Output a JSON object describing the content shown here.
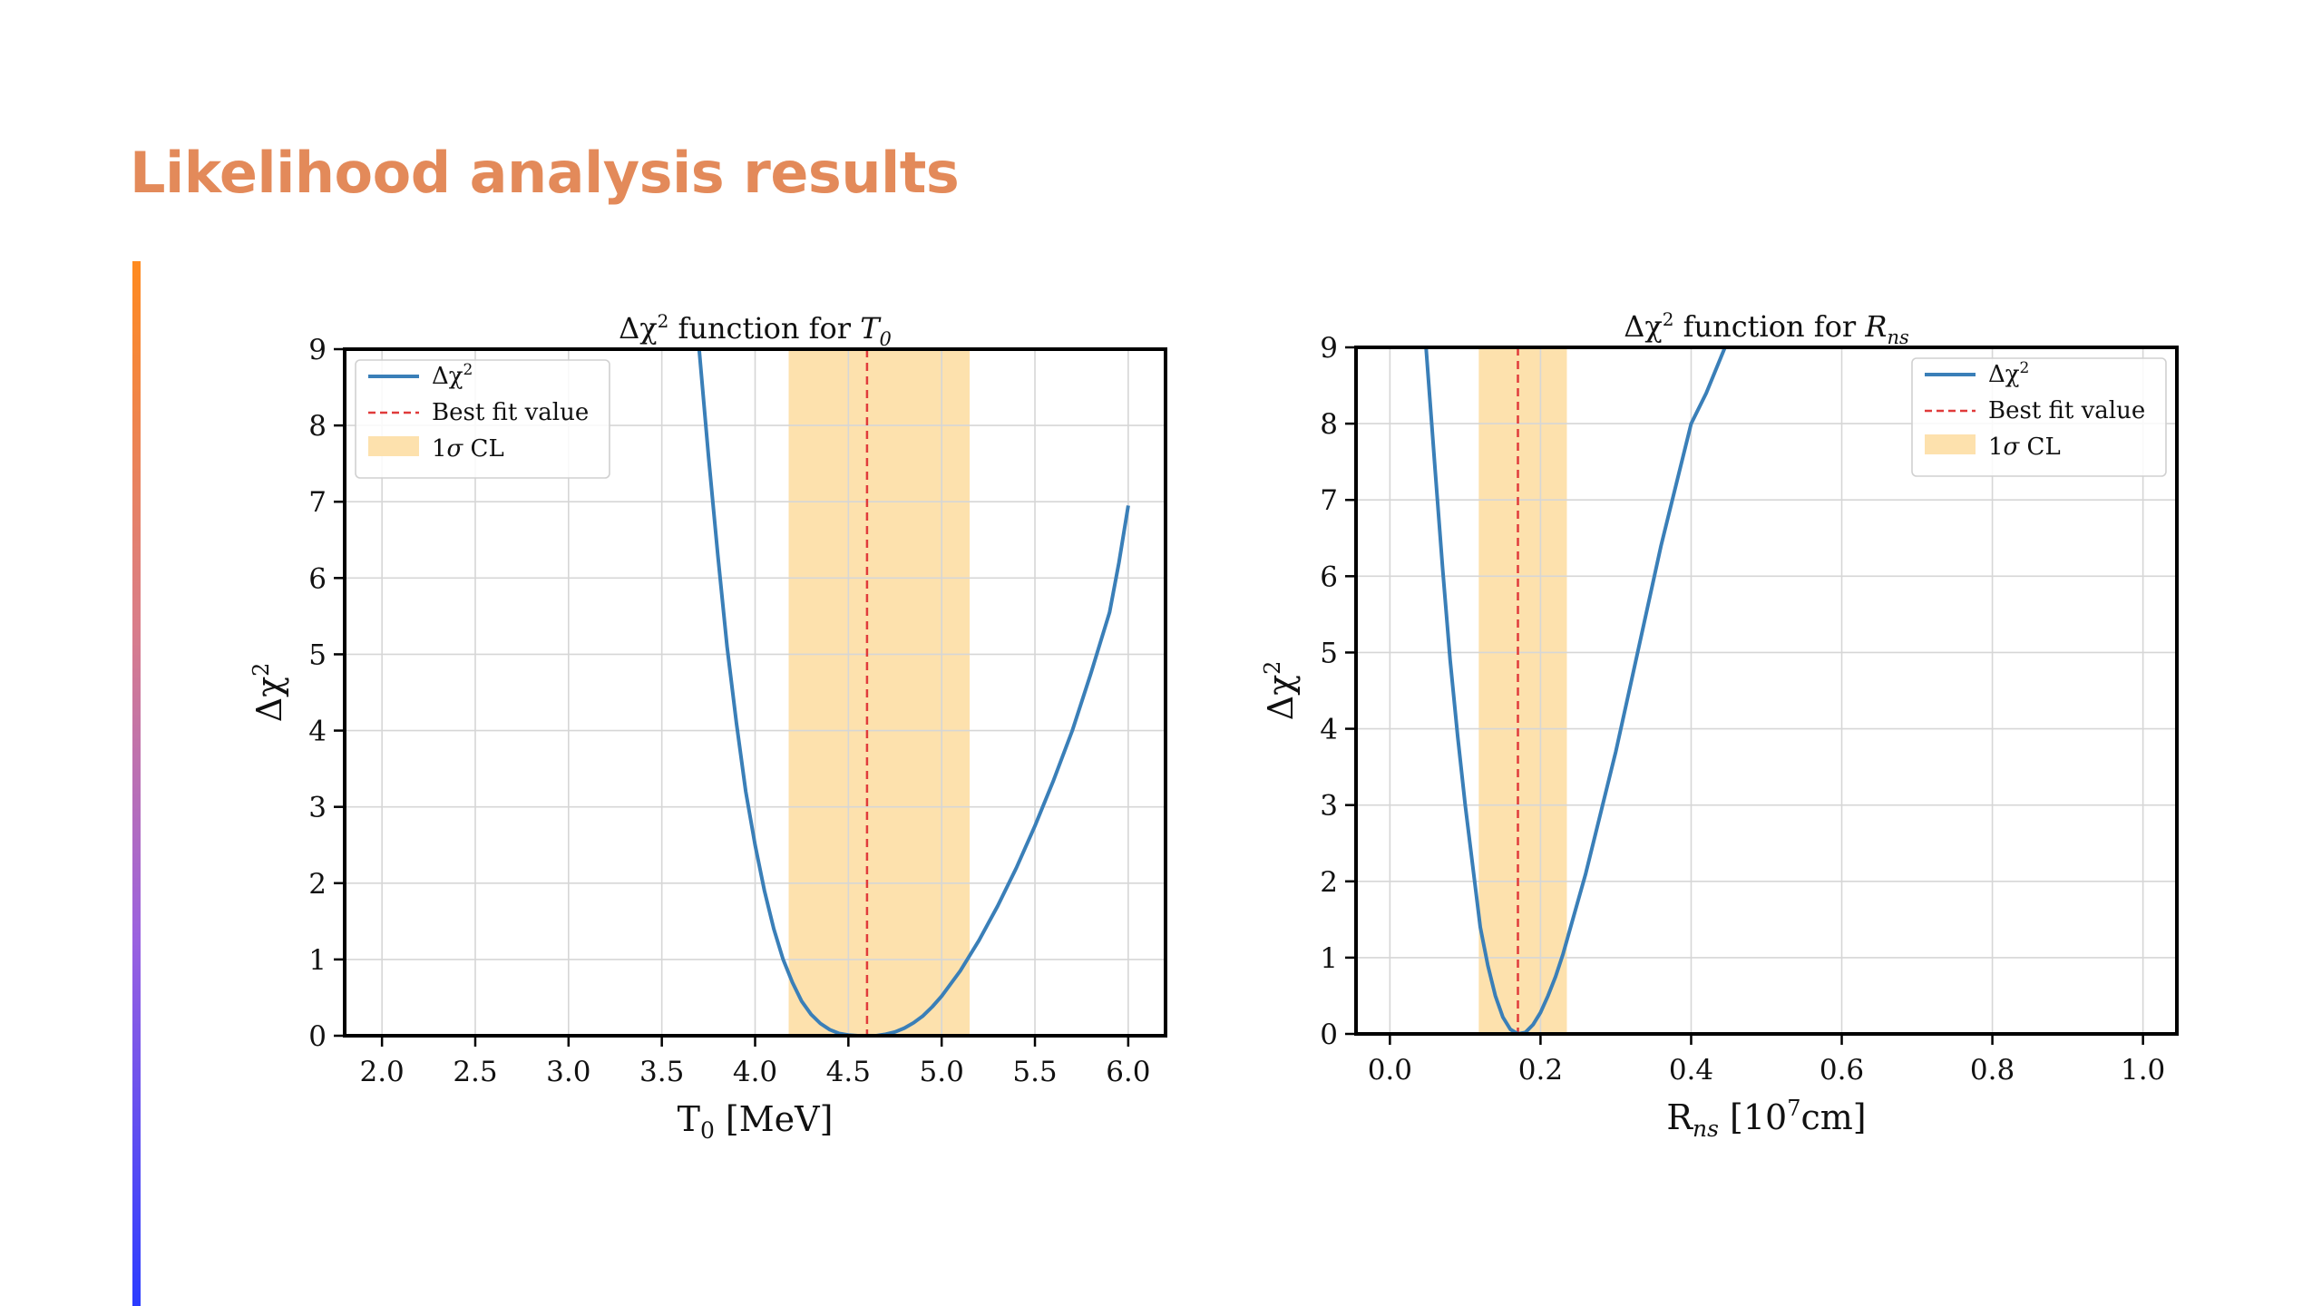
{
  "slide": {
    "title": "Likelihood analysis results"
  },
  "colors": {
    "title": "#e38a5a",
    "curve": "#3a7fb8",
    "best_fit": "#e03b3b",
    "band": "#fde1ad"
  },
  "chart_data": [
    {
      "type": "line",
      "title_parts": [
        "Δχ",
        "2",
        " function for ",
        "T",
        "0"
      ],
      "xlabel_parts": [
        "T",
        "0",
        " [MeV]"
      ],
      "ylabel_parts": [
        "Δχ",
        "2"
      ],
      "xlim": [
        1.8,
        6.2
      ],
      "ylim": [
        0,
        9
      ],
      "xticks": [
        2.0,
        2.5,
        3.0,
        3.5,
        4.0,
        4.5,
        5.0,
        5.5,
        6.0
      ],
      "xtick_labels": [
        "2.0",
        "2.5",
        "3.0",
        "3.5",
        "4.0",
        "4.5",
        "5.0",
        "5.5",
        "6.0"
      ],
      "yticks": [
        0,
        1,
        2,
        3,
        4,
        5,
        6,
        7,
        8,
        9
      ],
      "ytick_labels": [
        "0",
        "1",
        "2",
        "3",
        "4",
        "5",
        "6",
        "7",
        "8",
        "9"
      ],
      "grid": true,
      "legend_position": "upper-left",
      "series": [
        {
          "name_parts": [
            "Δχ",
            "2"
          ],
          "x": [
            3.7,
            3.75,
            3.8,
            3.85,
            3.9,
            3.95,
            4.0,
            4.05,
            4.1,
            4.15,
            4.2,
            4.25,
            4.3,
            4.35,
            4.4,
            4.45,
            4.5,
            4.55,
            4.6,
            4.65,
            4.7,
            4.75,
            4.8,
            4.85,
            4.9,
            4.95,
            5.0,
            5.1,
            5.2,
            5.3,
            5.4,
            5.5,
            5.6,
            5.7,
            5.8,
            5.85,
            5.9,
            5.95,
            6.0
          ],
          "y": [
            9.0,
            7.6,
            6.3,
            5.1,
            4.1,
            3.2,
            2.5,
            1.9,
            1.4,
            1.0,
            0.7,
            0.45,
            0.28,
            0.16,
            0.08,
            0.03,
            0.01,
            0.0,
            0.0,
            0.0,
            0.02,
            0.05,
            0.1,
            0.17,
            0.26,
            0.38,
            0.52,
            0.85,
            1.25,
            1.7,
            2.2,
            2.75,
            3.35,
            4.0,
            4.75,
            5.15,
            5.55,
            6.2,
            6.95
          ]
        }
      ],
      "best_fit": {
        "label": "Best fit value",
        "x": 4.6
      },
      "band": {
        "label_parts": [
          "1",
          "σ",
          " CL"
        ],
        "x": [
          4.18,
          5.15
        ]
      }
    },
    {
      "type": "line",
      "title_parts": [
        "Δχ",
        "2",
        " function for ",
        "R",
        "ns"
      ],
      "xlabel_parts": [
        "R",
        "ns",
        " [10",
        "7",
        "cm]"
      ],
      "ylabel_parts": [
        "Δχ",
        "2"
      ],
      "xlim": [
        -0.045,
        1.045
      ],
      "ylim": [
        0,
        9
      ],
      "xticks": [
        0.0,
        0.2,
        0.4,
        0.6,
        0.8,
        1.0
      ],
      "xtick_labels": [
        "0.0",
        "0.2",
        "0.4",
        "0.6",
        "0.8",
        "1.0"
      ],
      "yticks": [
        0,
        1,
        2,
        3,
        4,
        5,
        6,
        7,
        8,
        9
      ],
      "ytick_labels": [
        "0",
        "1",
        "2",
        "3",
        "4",
        "5",
        "6",
        "7",
        "8",
        "9"
      ],
      "grid": true,
      "legend_position": "upper-right",
      "series": [
        {
          "name_parts": [
            "Δχ",
            "2"
          ],
          "x": [
            0.048,
            0.06,
            0.07,
            0.08,
            0.09,
            0.1,
            0.11,
            0.12,
            0.13,
            0.14,
            0.15,
            0.16,
            0.17,
            0.18,
            0.19,
            0.2,
            0.21,
            0.22,
            0.23,
            0.24,
            0.26,
            0.28,
            0.3,
            0.32,
            0.34,
            0.36,
            0.38,
            0.4,
            0.42,
            0.445
          ],
          "y": [
            9.0,
            7.4,
            6.1,
            4.9,
            3.9,
            3.0,
            2.2,
            1.4,
            0.9,
            0.5,
            0.22,
            0.06,
            0.0,
            0.02,
            0.12,
            0.28,
            0.5,
            0.75,
            1.05,
            1.4,
            2.1,
            2.9,
            3.7,
            4.6,
            5.5,
            6.4,
            7.2,
            8.0,
            8.4,
            9.0
          ]
        }
      ],
      "best_fit": {
        "label": "Best fit value",
        "x": 0.17
      },
      "band": {
        "label_parts": [
          "1",
          "σ",
          " CL"
        ],
        "x": [
          0.118,
          0.235
        ]
      }
    }
  ]
}
